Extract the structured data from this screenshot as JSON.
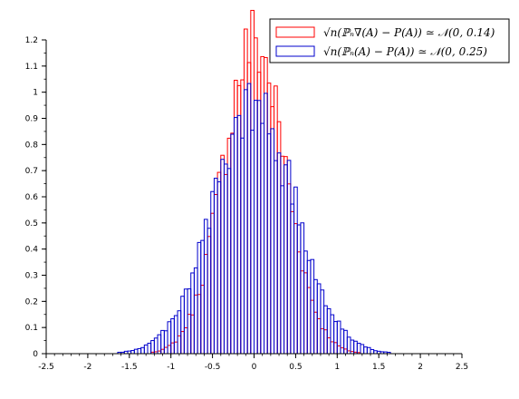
{
  "chart_data": {
    "type": "bar",
    "subtype": "overlapping-histogram",
    "title": "",
    "xlabel": "",
    "ylabel": "",
    "xlim": [
      -2.5,
      2.5
    ],
    "ylim": [
      0,
      1.2
    ],
    "bin_width": 0.04,
    "x_ticks": [
      "-2.5",
      "-2",
      "-1.5",
      "-1",
      "-0.5",
      "0",
      "0.5",
      "1",
      "1.5",
      "2",
      "2.5"
    ],
    "y_ticks": [
      "0",
      "0.1",
      "0.2",
      "0.3",
      "0.4",
      "0.5",
      "0.6",
      "0.7",
      "0.8",
      "0.9",
      "1",
      "1.1",
      "1.2"
    ],
    "grid": false,
    "legend_position": "top-right",
    "series": [
      {
        "name": "√n(ℙₙ∇(A) − P(A)) ≃ 𝒩(0, 0.14)",
        "color": "#ff0000",
        "distribution": "normal",
        "mean": 0,
        "variance": 0.14,
        "peak_value": 1.19
      },
      {
        "name": "√n(ℙₙ(A) − P(A)) ≃ 𝒩(0, 0.25)",
        "color": "#0000cc",
        "distribution": "normal",
        "mean": 0,
        "variance": 0.25,
        "peak_value": 0.93
      }
    ]
  }
}
